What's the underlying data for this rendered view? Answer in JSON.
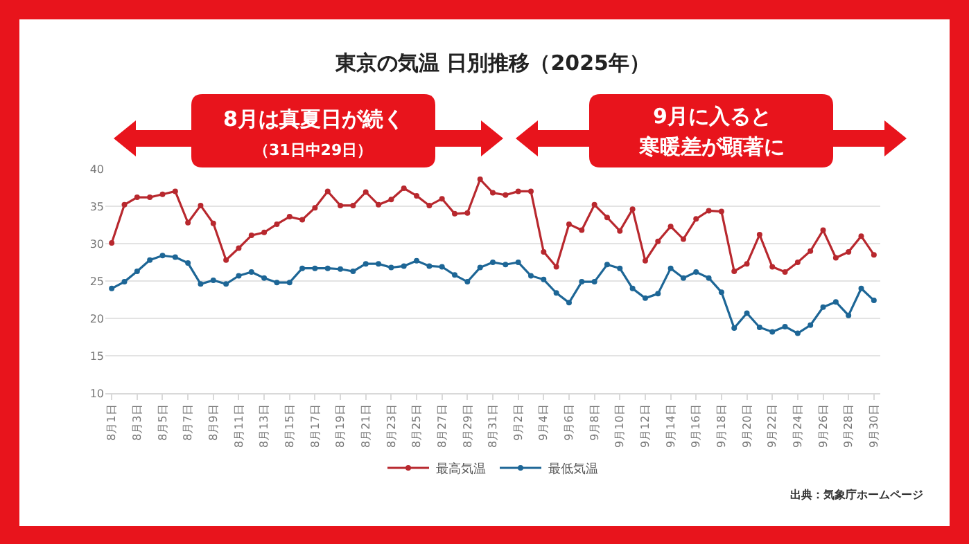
{
  "chart_data": {
    "type": "line",
    "title": "東京の気温 日別推移（2025年）",
    "categories": [
      "8月1日",
      null,
      "8月3日",
      null,
      "8月5日",
      null,
      "8月7日",
      null,
      "8月9日",
      null,
      "8月11日",
      null,
      "8月13日",
      null,
      "8月15日",
      null,
      "8月17日",
      null,
      "8月19日",
      null,
      "8月21日",
      null,
      "8月23日",
      null,
      "8月25日",
      null,
      "8月27日",
      null,
      "8月29日",
      null,
      "8月31日",
      null,
      "9月2日",
      null,
      "9月4日",
      null,
      "9月6日",
      null,
      "9月8日",
      null,
      "9月10日",
      null,
      "9月12日",
      null,
      "9月14日",
      null,
      "9月16日",
      null,
      "9月18日",
      null,
      "9月20日",
      null,
      "9月22日",
      null,
      "9月24日",
      null,
      "9月26日",
      null,
      "9月28日",
      null,
      "9月30日"
    ],
    "series": [
      {
        "name": "最高気温",
        "color": "#b8282e",
        "values": [
          30.1,
          35.2,
          36.2,
          36.2,
          36.6,
          37.0,
          32.8,
          35.1,
          32.7,
          27.8,
          29.4,
          31.1,
          31.5,
          32.6,
          33.6,
          33.2,
          34.8,
          37.0,
          35.1,
          35.1,
          36.9,
          35.2,
          35.9,
          37.4,
          36.4,
          35.1,
          36.0,
          34.0,
          34.1,
          38.6,
          36.8,
          36.5,
          37.0,
          37.0,
          28.9,
          26.9,
          32.6,
          31.8,
          35.2,
          33.5,
          31.7,
          34.6,
          27.7,
          30.3,
          32.3,
          30.6,
          33.3,
          34.4,
          34.3,
          26.3,
          27.3,
          31.2,
          26.9,
          26.2,
          27.5,
          29.0,
          31.8,
          28.1,
          28.9,
          31.0,
          28.5
        ]
      },
      {
        "name": "最低気温",
        "color": "#1d6696",
        "values": [
          24.0,
          24.9,
          26.3,
          27.8,
          28.4,
          28.2,
          27.4,
          24.6,
          25.1,
          24.6,
          25.7,
          26.2,
          25.4,
          24.8,
          24.8,
          26.7,
          26.7,
          26.7,
          26.6,
          26.3,
          27.3,
          27.3,
          26.8,
          27.0,
          27.7,
          27.0,
          26.9,
          25.8,
          24.9,
          26.8,
          27.5,
          27.2,
          27.5,
          25.7,
          25.2,
          23.4,
          22.1,
          24.9,
          24.9,
          27.2,
          26.7,
          24.0,
          22.7,
          23.3,
          26.7,
          25.4,
          26.2,
          25.4,
          23.5,
          18.7,
          20.7,
          18.8,
          18.2,
          18.9,
          18.0,
          19.1,
          21.5,
          22.2,
          20.4,
          24.0,
          22.4
        ]
      }
    ],
    "ylim": [
      10,
      40
    ],
    "yticks": [
      10,
      15,
      20,
      25,
      30,
      35,
      40
    ],
    "grid": "y",
    "legend": "bottom",
    "marker": "circle",
    "line_style": "solid",
    "annotations": [
      "8月は真夏日が続く",
      "（31日中29日）",
      "9月に入ると",
      "寒暖差が顕著に",
      "出典：気象庁ホームページ"
    ]
  }
}
